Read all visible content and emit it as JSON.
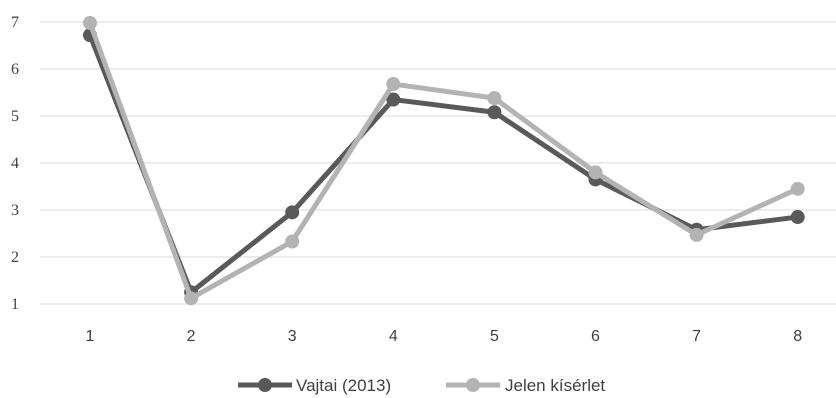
{
  "chart_data": {
    "type": "line",
    "title": "",
    "xlabel": "",
    "ylabel": "",
    "x": [
      1,
      2,
      3,
      4,
      5,
      6,
      7,
      8
    ],
    "x_tick_labels": [
      "1",
      "2",
      "3",
      "4",
      "5",
      "6",
      "7",
      "8"
    ],
    "y_tick_labels": [
      "1",
      "2",
      "3",
      "4",
      "5",
      "6",
      "7"
    ],
    "ylim": [
      1,
      7
    ],
    "grid": true,
    "legend_position": "bottom",
    "series": [
      {
        "name": "Vajtai (2013)",
        "color": "#595959",
        "values": [
          6.72,
          1.25,
          2.95,
          5.35,
          5.08,
          3.65,
          2.58,
          2.85
        ]
      },
      {
        "name": "Jelen kísérlet",
        "color": "#b3b3b3",
        "values": [
          6.98,
          1.12,
          2.33,
          5.68,
          5.38,
          3.8,
          2.47,
          3.45
        ]
      }
    ]
  }
}
